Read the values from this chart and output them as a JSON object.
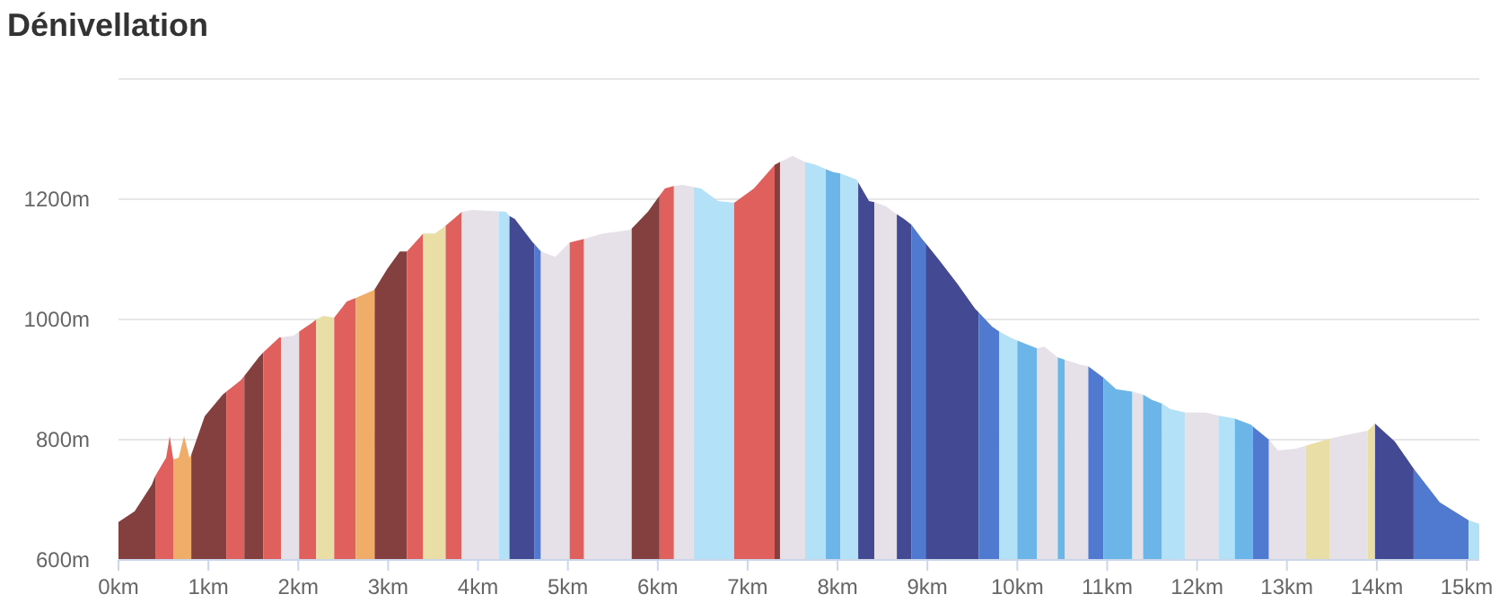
{
  "chart_data": {
    "type": "area",
    "title": "Dénivellation",
    "xlim": [
      0,
      15.14
    ],
    "ylim": [
      600,
      1400
    ],
    "xticks": [
      {
        "value": 0,
        "label": "0km"
      },
      {
        "value": 1,
        "label": "1km"
      },
      {
        "value": 2,
        "label": "2km"
      },
      {
        "value": 3,
        "label": "3km"
      },
      {
        "value": 4,
        "label": "4km"
      },
      {
        "value": 5,
        "label": "5km"
      },
      {
        "value": 6,
        "label": "6km"
      },
      {
        "value": 7,
        "label": "7km"
      },
      {
        "value": 8,
        "label": "8km"
      },
      {
        "value": 9,
        "label": "9km"
      },
      {
        "value": 10,
        "label": "10km"
      },
      {
        "value": 11,
        "label": "11km"
      },
      {
        "value": 12,
        "label": "12km"
      },
      {
        "value": 13,
        "label": "13km"
      },
      {
        "value": 14,
        "label": "14km"
      },
      {
        "value": 15,
        "label": "15km"
      }
    ],
    "yticks": [
      {
        "value": 600,
        "label": "600m"
      },
      {
        "value": 800,
        "label": "800m"
      },
      {
        "value": 1000,
        "label": "1000m"
      },
      {
        "value": 1200,
        "label": "1200m"
      },
      {
        "value": 1400,
        "label": null
      }
    ],
    "grid": "y",
    "series": [
      {
        "color": "#843f3f",
        "x": [
          0,
          0.18,
          0.37,
          0.41
        ],
        "values": [
          663,
          681,
          725,
          740
        ]
      },
      {
        "color": "#e0605d",
        "x": [
          0.41,
          0.53,
          0.57,
          0.61
        ],
        "values": [
          740,
          770,
          806,
          767
        ]
      },
      {
        "color": "#f0ad6a",
        "x": [
          0.61,
          0.67,
          0.73,
          0.79,
          0.81
        ],
        "values": [
          767,
          770,
          806,
          770,
          775
        ]
      },
      {
        "color": "#843f3f",
        "x": [
          0.81,
          0.96,
          1.16,
          1.2
        ],
        "values": [
          775,
          839,
          875,
          880
        ]
      },
      {
        "color": "#e0605d",
        "x": [
          1.2,
          1.36,
          1.4
        ],
        "values": [
          880,
          899,
          906
        ]
      },
      {
        "color": "#843f3f",
        "x": [
          1.4,
          1.56,
          1.61
        ],
        "values": [
          906,
          937,
          945
        ]
      },
      {
        "color": "#e0605d",
        "x": [
          1.61,
          1.79,
          1.81
        ],
        "values": [
          945,
          970,
          970
        ]
      },
      {
        "color": "#e6e0e8",
        "x": [
          1.81,
          1.95,
          2.01
        ],
        "values": [
          970,
          973,
          980
        ]
      },
      {
        "color": "#e0605d",
        "x": [
          2.01,
          2.15,
          2.2
        ],
        "values": [
          980,
          994,
          1000
        ]
      },
      {
        "color": "#e9dfa6",
        "x": [
          2.2,
          2.28,
          2.4
        ],
        "values": [
          1000,
          1006,
          1003
        ]
      },
      {
        "color": "#e0605d",
        "x": [
          2.4,
          2.54,
          2.64
        ],
        "values": [
          1003,
          1030,
          1036
        ]
      },
      {
        "color": "#f0ad6a",
        "x": [
          2.64,
          2.83,
          2.85
        ],
        "values": [
          1036,
          1048,
          1050
        ]
      },
      {
        "color": "#843f3f",
        "x": [
          2.85,
          2.99,
          3.13,
          3.21
        ],
        "values": [
          1050,
          1084,
          1113,
          1113
        ]
      },
      {
        "color": "#e0605d",
        "x": [
          3.21,
          3.39
        ],
        "values": [
          1113,
          1143
        ]
      },
      {
        "color": "#e9dfa6",
        "x": [
          3.39,
          3.52,
          3.64
        ],
        "values": [
          1143,
          1143,
          1156
        ]
      },
      {
        "color": "#e0605d",
        "x": [
          3.64,
          3.82
        ],
        "values": [
          1156,
          1179
        ]
      },
      {
        "color": "#e6e0e8",
        "x": [
          3.82,
          3.94,
          4.23
        ],
        "values": [
          1179,
          1182,
          1180
        ]
      },
      {
        "color": "#b3e1f7",
        "x": [
          4.23,
          4.31,
          4.35
        ],
        "values": [
          1180,
          1179,
          1172
        ]
      },
      {
        "color": "#434a93",
        "x": [
          4.35,
          4.41,
          4.61,
          4.63
        ],
        "values": [
          1172,
          1167,
          1128,
          1125
        ]
      },
      {
        "color": "#5079d0",
        "x": [
          4.63,
          4.7
        ],
        "values": [
          1125,
          1113
        ]
      },
      {
        "color": "#e6e0e8",
        "x": [
          4.7,
          4.86,
          5.02
        ],
        "values": [
          1113,
          1104,
          1128
        ]
      },
      {
        "color": "#e0605d",
        "x": [
          5.02,
          5.18
        ],
        "values": [
          1128,
          1134
        ]
      },
      {
        "color": "#e6e0e8",
        "x": [
          5.18,
          5.39,
          5.69,
          5.71
        ],
        "values": [
          1134,
          1143,
          1149,
          1151
        ]
      },
      {
        "color": "#843f3f",
        "x": [
          5.71,
          5.89,
          6.02
        ],
        "values": [
          1151,
          1179,
          1206
        ]
      },
      {
        "color": "#e0605d",
        "x": [
          6.02,
          6.08,
          6.18
        ],
        "values": [
          1206,
          1218,
          1222
        ]
      },
      {
        "color": "#e6e0e8",
        "x": [
          6.18,
          6.28,
          6.4
        ],
        "values": [
          1222,
          1224,
          1220
        ]
      },
      {
        "color": "#b3e1f7",
        "x": [
          6.4,
          6.48,
          6.67,
          6.85
        ],
        "values": [
          1220,
          1218,
          1197,
          1194
        ]
      },
      {
        "color": "#e0605d",
        "x": [
          6.85,
          7.07,
          7.3
        ],
        "values": [
          1194,
          1218,
          1257
        ]
      },
      {
        "color": "#843f3f",
        "x": [
          7.3,
          7.36
        ],
        "values": [
          1257,
          1262
        ]
      },
      {
        "color": "#e6e0e8",
        "x": [
          7.36,
          7.5,
          7.64
        ],
        "values": [
          1262,
          1272,
          1262
        ]
      },
      {
        "color": "#b3e1f7",
        "x": [
          7.64,
          7.76,
          7.87
        ],
        "values": [
          1262,
          1257,
          1250
        ]
      },
      {
        "color": "#6cb5e8",
        "x": [
          7.87,
          7.95,
          8.03
        ],
        "values": [
          1250,
          1245,
          1243
        ]
      },
      {
        "color": "#b3e1f7",
        "x": [
          8.03,
          8.21,
          8.23
        ],
        "values": [
          1243,
          1233,
          1228
        ]
      },
      {
        "color": "#434a93",
        "x": [
          8.23,
          8.35,
          8.41
        ],
        "values": [
          1228,
          1197,
          1195
        ]
      },
      {
        "color": "#e6e0e8",
        "x": [
          8.41,
          8.54,
          8.66
        ],
        "values": [
          1195,
          1188,
          1175
        ]
      },
      {
        "color": "#434a93",
        "x": [
          8.66,
          8.74,
          8.82
        ],
        "values": [
          1175,
          1167,
          1158
        ]
      },
      {
        "color": "#5079d0",
        "x": [
          8.82,
          8.94,
          8.98
        ],
        "values": [
          1158,
          1134,
          1127
        ]
      },
      {
        "color": "#434a93",
        "x": [
          8.98,
          9.13,
          9.33,
          9.53,
          9.57
        ],
        "values": [
          1127,
          1099,
          1060,
          1018,
          1012
        ]
      },
      {
        "color": "#5079d0",
        "x": [
          9.57,
          9.72,
          9.8
        ],
        "values": [
          1012,
          988,
          980
        ]
      },
      {
        "color": "#b3e1f7",
        "x": [
          9.8,
          9.92,
          10
        ],
        "values": [
          980,
          970,
          965
        ]
      },
      {
        "color": "#6cb5e8",
        "x": [
          10,
          10.22
        ],
        "values": [
          965,
          952
        ]
      },
      {
        "color": "#e6e0e8",
        "x": [
          10.22,
          10.3,
          10.45
        ],
        "values": [
          952,
          955,
          937
        ]
      },
      {
        "color": "#6cb5e8",
        "x": [
          10.45,
          10.53
        ],
        "values": [
          937,
          933
        ]
      },
      {
        "color": "#e6e0e8",
        "x": [
          10.53,
          10.7,
          10.79
        ],
        "values": [
          933,
          925,
          922
        ]
      },
      {
        "color": "#5079d0",
        "x": [
          10.79,
          10.96
        ],
        "values": [
          922,
          903
        ]
      },
      {
        "color": "#6cb5e8",
        "x": [
          10.96,
          11.1,
          11.28
        ],
        "values": [
          903,
          884,
          880
        ]
      },
      {
        "color": "#e6e0e8",
        "x": [
          11.28,
          11.4
        ],
        "values": [
          880,
          875
        ]
      },
      {
        "color": "#6cb5e8",
        "x": [
          11.4,
          11.5,
          11.61
        ],
        "values": [
          875,
          866,
          860
        ]
      },
      {
        "color": "#b3e1f7",
        "x": [
          11.61,
          11.7,
          11.87
        ],
        "values": [
          860,
          851,
          845
        ]
      },
      {
        "color": "#e6e0e8",
        "x": [
          11.87,
          12.1,
          12.24
        ],
        "values": [
          845,
          845,
          840
        ]
      },
      {
        "color": "#b3e1f7",
        "x": [
          12.24,
          12.4,
          12.42
        ],
        "values": [
          840,
          836,
          835
        ]
      },
      {
        "color": "#6cb5e8",
        "x": [
          12.42,
          12.6,
          12.62
        ],
        "values": [
          835,
          825,
          822
        ]
      },
      {
        "color": "#5079d0",
        "x": [
          12.62,
          12.8
        ],
        "values": [
          822,
          800
        ]
      },
      {
        "color": "#e6e0e8",
        "x": [
          12.8,
          12.9,
          13.1,
          13.21
        ],
        "values": [
          800,
          782,
          785,
          790
        ]
      },
      {
        "color": "#e9dfa6",
        "x": [
          13.21,
          13.3,
          13.48
        ],
        "values": [
          790,
          794,
          802
        ]
      },
      {
        "color": "#e6e0e8",
        "x": [
          13.48,
          13.6,
          13.9
        ],
        "values": [
          802,
          806,
          815
        ]
      },
      {
        "color": "#e9dfa6",
        "x": [
          13.9,
          13.98
        ],
        "values": [
          815,
          827
        ]
      },
      {
        "color": "#434a93",
        "x": [
          13.98,
          14.2,
          14.41
        ],
        "values": [
          827,
          797,
          752
        ]
      },
      {
        "color": "#5079d0",
        "x": [
          14.41,
          14.7,
          15.02
        ],
        "values": [
          752,
          696,
          666
        ]
      },
      {
        "color": "#b3e1f7",
        "x": [
          15.02,
          15.14
        ],
        "values": [
          666,
          660
        ]
      }
    ]
  }
}
